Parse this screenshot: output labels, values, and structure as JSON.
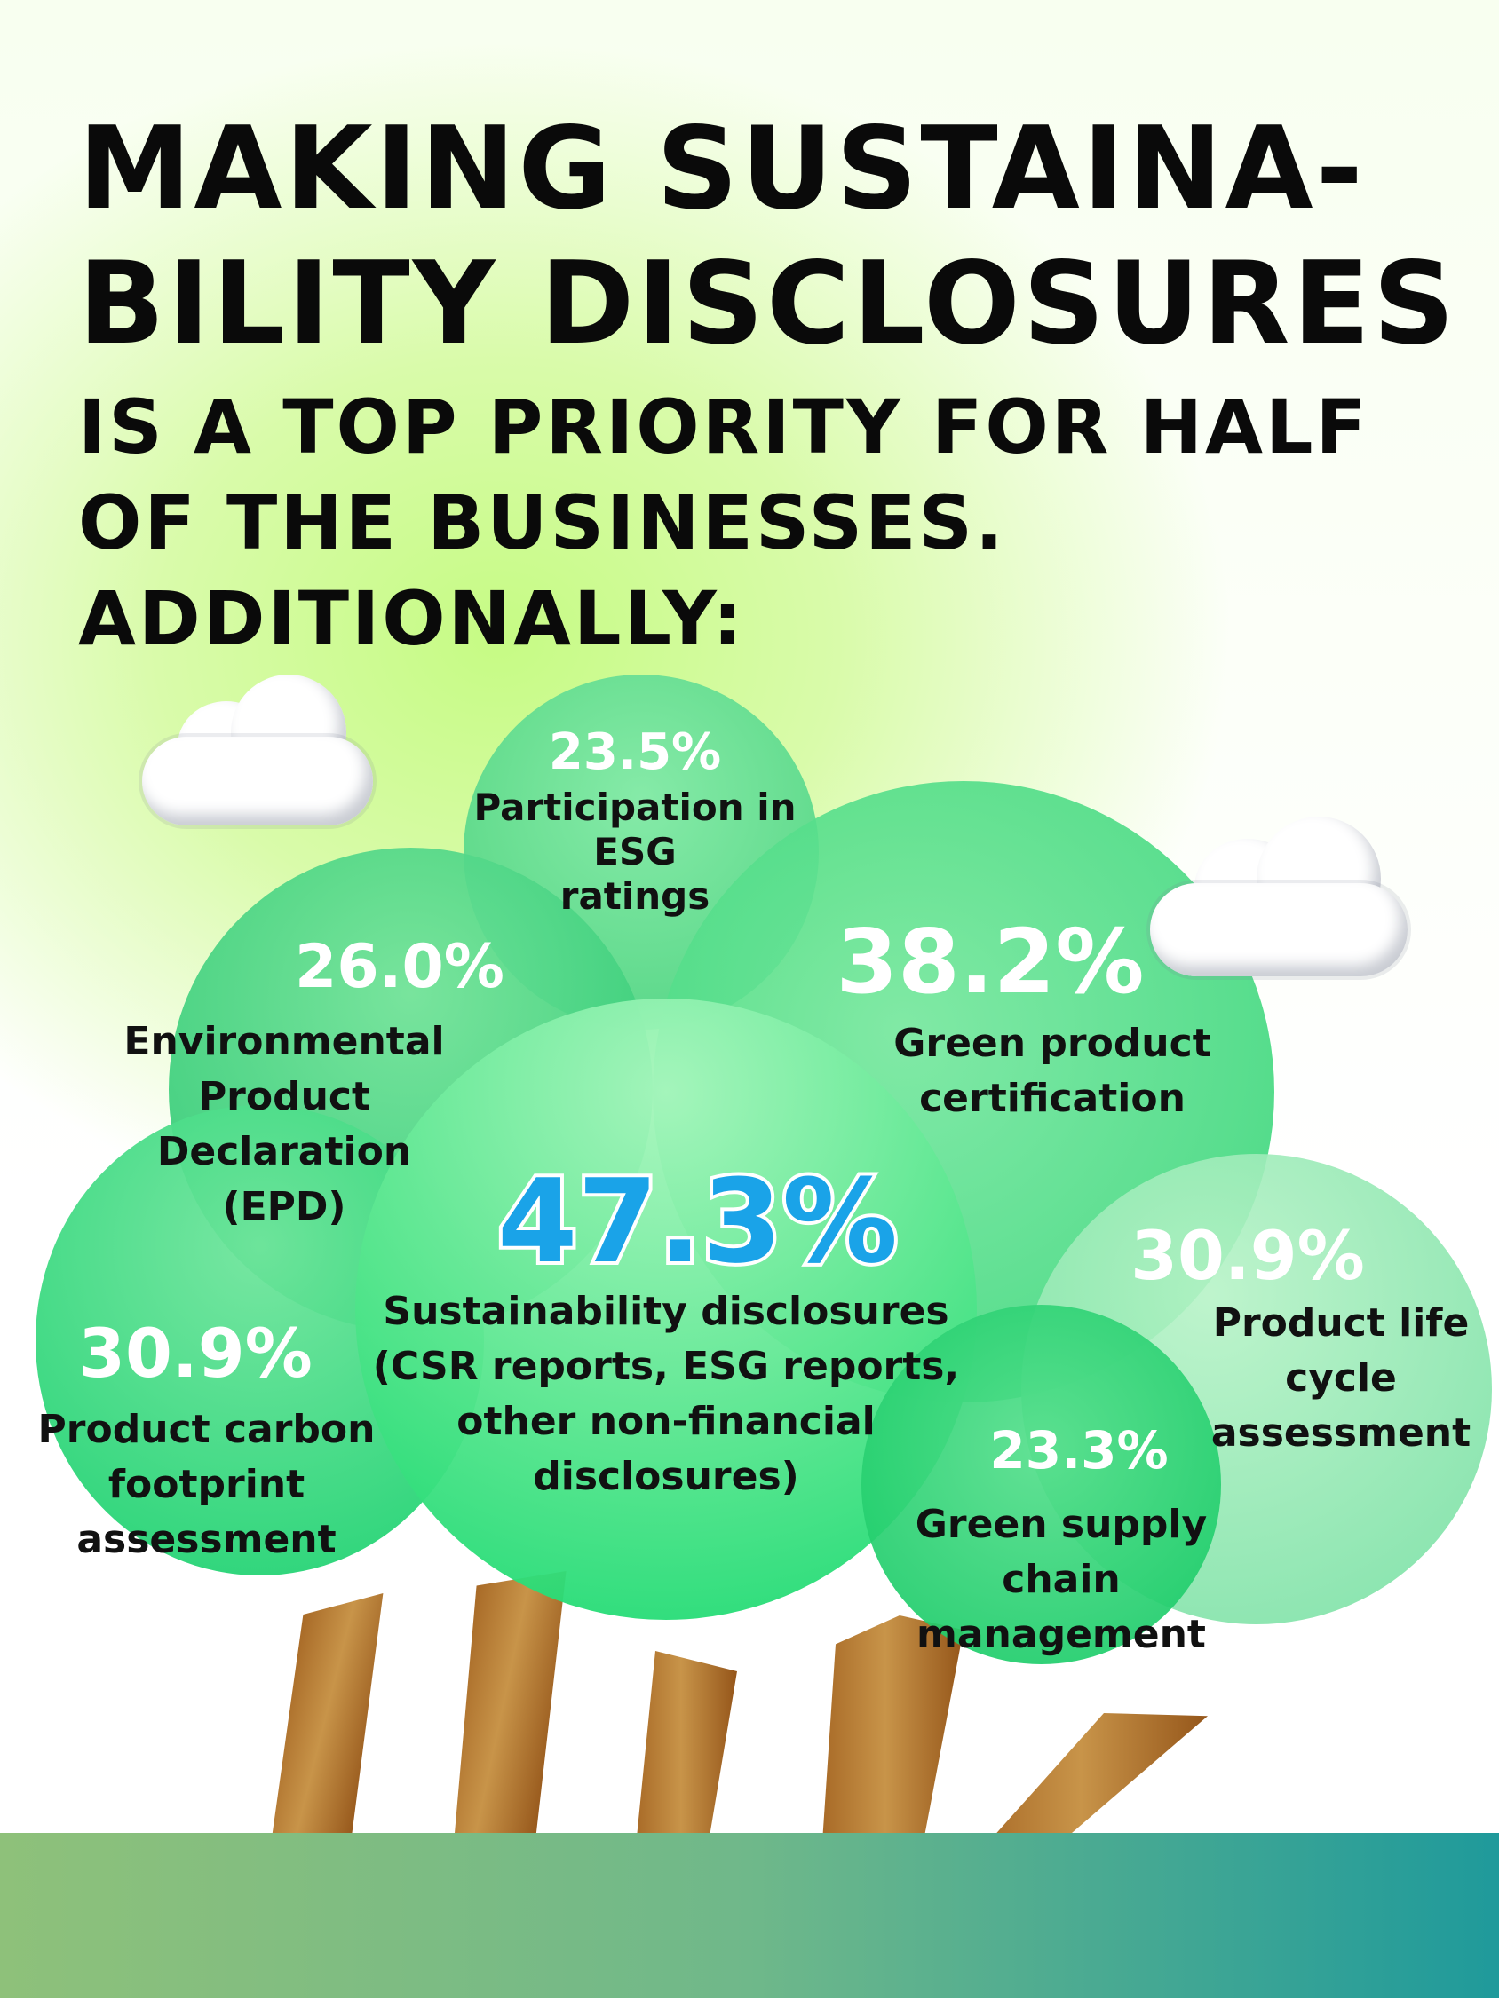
{
  "headline": {
    "line1": "MAKING SUSTAINA-",
    "line2": "BILITY DISCLOSURES",
    "line3": "IS A TOP PRIORITY FOR HALF",
    "line4": "OF THE BUSINESSES.",
    "line5": "ADDITIONALLY:"
  },
  "stats": {
    "esg_ratings": {
      "percent": "23.5%",
      "label_lines": [
        "Participation in",
        "ESG",
        "ratings"
      ]
    },
    "epd": {
      "percent": "26.0%",
      "label_lines": [
        "Environmental",
        "Product",
        "Declaration",
        "(EPD)"
      ]
    },
    "green_certification": {
      "percent": "38.2%",
      "label_lines": [
        "Green product",
        "certification"
      ]
    },
    "main": {
      "percent": "47.3%",
      "label_lines": [
        "Sustainability disclosures",
        "(CSR reports, ESG reports,",
        "other non-financial",
        "disclosures)"
      ]
    },
    "carbon_footprint": {
      "percent": "30.9%",
      "label_lines": [
        "Product carbon",
        "footprint",
        "assessment"
      ]
    },
    "life_cycle": {
      "percent": "30.9%",
      "label_lines": [
        "Product life",
        "cycle",
        "assessment"
      ]
    },
    "supply_chain": {
      "percent": "23.3%",
      "label_lines": [
        "Green supply",
        "chain",
        "management"
      ]
    }
  },
  "colors": {
    "hero_percent": "#1aa3e8",
    "ground_left": "#8ec17a",
    "ground_right": "#1f9a9b",
    "trunk": "#b07a33"
  },
  "icons": [
    "cloud-icon",
    "cloud-icon"
  ]
}
